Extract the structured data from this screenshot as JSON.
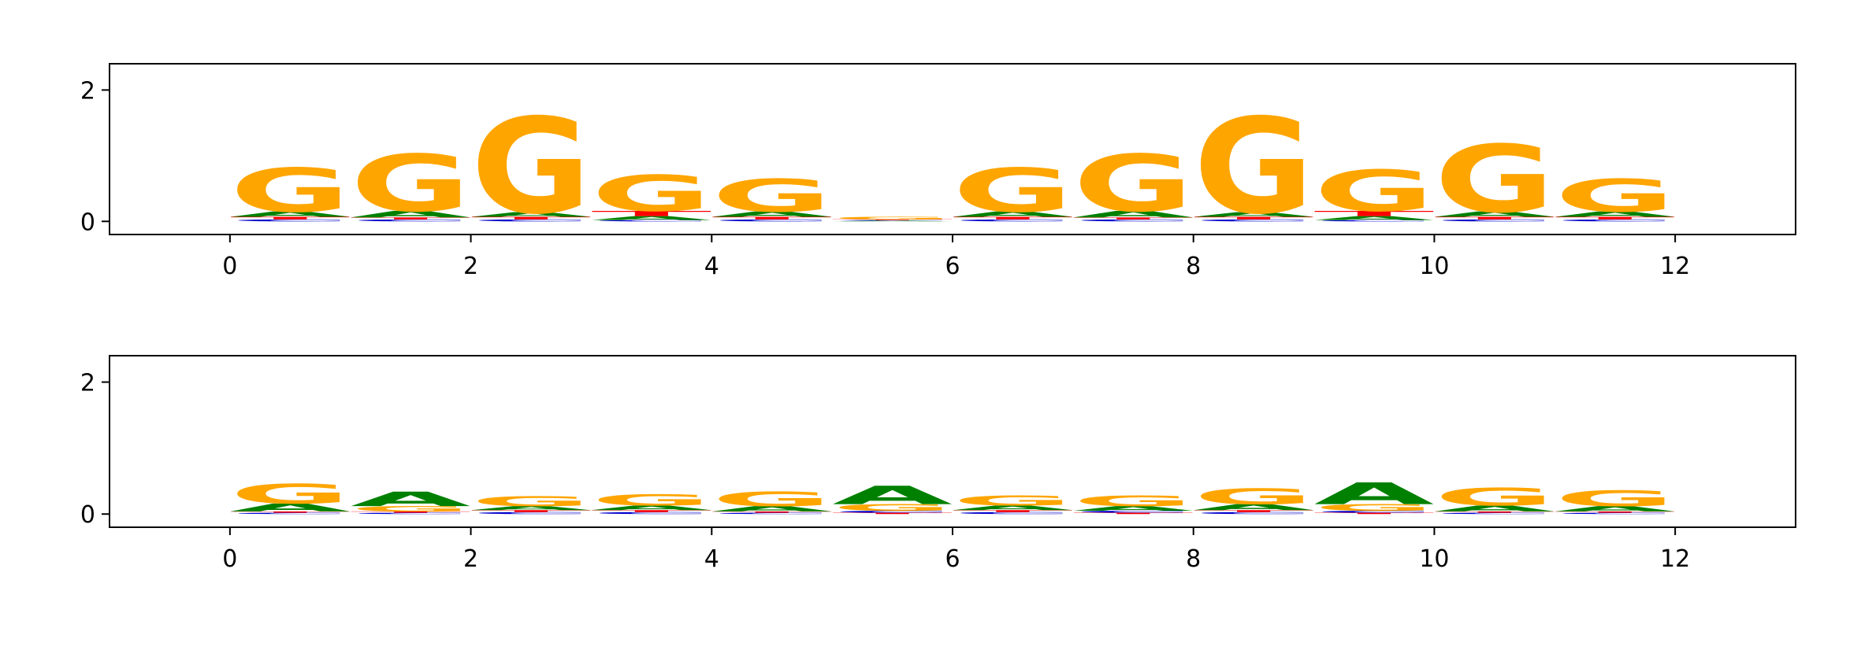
{
  "chart_data": [
    {
      "type": "logo",
      "x": [
        0.5,
        1.5,
        2.5,
        3.5,
        4.5,
        5.5,
        6.5,
        7.5,
        8.5,
        9.5,
        10.5,
        11.5
      ],
      "series": [
        {
          "name": "A",
          "color": "#008000",
          "values": [
            0.08,
            0.1,
            0.07,
            0.06,
            0.08,
            0.01,
            0.08,
            0.1,
            0.07,
            0.06,
            0.08,
            0.08
          ]
        },
        {
          "name": "C",
          "color": "#0000cc",
          "values": [
            0.03,
            0.03,
            0.03,
            0.02,
            0.03,
            0.01,
            0.03,
            0.03,
            0.03,
            0.02,
            0.03,
            0.03
          ]
        },
        {
          "name": "G",
          "color": "#ffa500",
          "values": [
            0.67,
            0.87,
            1.46,
            0.55,
            0.5,
            0.04,
            0.67,
            0.87,
            1.46,
            0.63,
            1.03,
            0.5
          ]
        },
        {
          "name": "T",
          "color": "#ff0000",
          "values": [
            0.04,
            0.03,
            0.04,
            0.08,
            0.04,
            0.01,
            0.04,
            0.03,
            0.04,
            0.08,
            0.04,
            0.04
          ]
        }
      ],
      "xlim": [
        -1,
        13
      ],
      "ylim": [
        -0.2,
        2.4
      ],
      "xticks": [
        0,
        2,
        4,
        6,
        8,
        10,
        12
      ],
      "yticks": [
        0,
        2
      ]
    },
    {
      "type": "logo",
      "x": [
        0.5,
        1.5,
        2.5,
        3.5,
        4.5,
        5.5,
        6.5,
        7.5,
        8.5,
        9.5,
        10.5,
        11.5
      ],
      "series": [
        {
          "name": "A",
          "color": "#008000",
          "values": [
            0.12,
            0.22,
            0.06,
            0.07,
            0.08,
            0.28,
            0.07,
            0.07,
            0.09,
            0.33,
            0.09,
            0.08
          ]
        },
        {
          "name": "C",
          "color": "#0000cc",
          "values": [
            0.02,
            0.02,
            0.03,
            0.03,
            0.02,
            0.03,
            0.03,
            0.03,
            0.03,
            0.03,
            0.02,
            0.02
          ]
        },
        {
          "name": "G",
          "color": "#ffa500",
          "values": [
            0.3,
            0.08,
            0.15,
            0.17,
            0.22,
            0.1,
            0.15,
            0.16,
            0.24,
            0.1,
            0.27,
            0.24
          ]
        },
        {
          "name": "T",
          "color": "#ff0000",
          "values": [
            0.02,
            0.02,
            0.03,
            0.03,
            0.02,
            0.02,
            0.03,
            0.02,
            0.03,
            0.02,
            0.02,
            0.02
          ]
        }
      ],
      "xlim": [
        -1,
        13
      ],
      "ylim": [
        -0.2,
        2.4
      ],
      "xticks": [
        0,
        2,
        4,
        6,
        8,
        10,
        12
      ],
      "yticks": [
        0,
        2
      ]
    }
  ]
}
